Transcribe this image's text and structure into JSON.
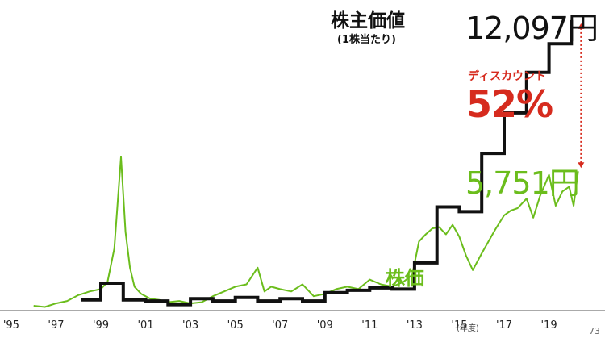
{
  "labels": {
    "black_title": "株主価値",
    "black_subtitle": "(1株当たり)",
    "black_value": "12,097円",
    "discount_label": "ディスカウント",
    "discount_value": "52%",
    "green_value": "5,751円",
    "green_label": "株価",
    "x_unit": "(年度)",
    "page_number": "73"
  },
  "colors": {
    "black_series": "#111111",
    "green_series": "#6bbd1c",
    "accent_red": "#d62b1e"
  },
  "chart_data": {
    "type": "line",
    "x_tick_labels": [
      "'95",
      "'97",
      "'99",
      "'01",
      "'03",
      "'05",
      "'07",
      "'09",
      "'11",
      "'13",
      "'15",
      "'17",
      "'19"
    ],
    "x_tick_years": [
      1995,
      1997,
      1999,
      2001,
      2003,
      2005,
      2007,
      2009,
      2011,
      2013,
      2015,
      2017,
      2019
    ],
    "xlabel": "(年度)",
    "xlim": [
      1994.5,
      2021.5
    ],
    "ylim": [
      0,
      12600
    ],
    "grid": false,
    "series": [
      {
        "name": "株主価値",
        "style": "step",
        "x": [
          1998.1,
          1999,
          2000,
          2001,
          2002,
          2003,
          2004,
          2005,
          2006,
          2007,
          2008,
          2009,
          2010,
          2011,
          2012,
          2013,
          2014,
          2015,
          2016,
          2017,
          2018,
          2019,
          2020
        ],
        "values": [
          350,
          1050,
          350,
          300,
          150,
          400,
          300,
          450,
          300,
          400,
          300,
          650,
          750,
          850,
          800,
          1900,
          4250,
          4050,
          6500,
          8200,
          9900,
          11100,
          12097
        ]
      },
      {
        "name": "株価",
        "style": "line",
        "x": [
          1996,
          1996.5,
          1997,
          1997.5,
          1998,
          1998.5,
          1999,
          1999.3,
          1999.6,
          1999.9,
          2000.1,
          2000.3,
          2000.5,
          2000.8,
          2001.2,
          2001.6,
          2002,
          2002.5,
          2003,
          2003.5,
          2004,
          2004.5,
          2005,
          2005.5,
          2006,
          2006.3,
          2006.6,
          2007,
          2007.5,
          2008,
          2008.5,
          2009,
          2009.5,
          2010,
          2010.5,
          2011,
          2011.5,
          2012,
          2012.5,
          2012.9,
          2013.2,
          2013.5,
          2013.8,
          2014.1,
          2014.4,
          2014.7,
          2015,
          2015.3,
          2015.6,
          2016,
          2016.3,
          2016.6,
          2017,
          2017.3,
          2017.6,
          2018,
          2018.3,
          2018.6,
          2019,
          2019.3,
          2019.6,
          2019.9,
          2020.1,
          2020.3
        ],
        "values": [
          100,
          50,
          200,
          300,
          550,
          700,
          800,
          1100,
          2500,
          6350,
          3200,
          1700,
          900,
          600,
          400,
          350,
          250,
          300,
          200,
          250,
          500,
          700,
          900,
          1000,
          1700,
          700,
          900,
          800,
          700,
          1000,
          500,
          600,
          800,
          900,
          800,
          1200,
          1000,
          900,
          1100,
          1400,
          2800,
          3100,
          3350,
          3400,
          3100,
          3500,
          3000,
          2200,
          1600,
          2300,
          2800,
          3300,
          3900,
          4100,
          4200,
          4600,
          3800,
          4700,
          5600,
          4300,
          4900,
          5100,
          4300,
          5751
        ]
      }
    ],
    "annotations": [
      {
        "text": "ディスカウント",
        "value": "52%"
      }
    ]
  }
}
